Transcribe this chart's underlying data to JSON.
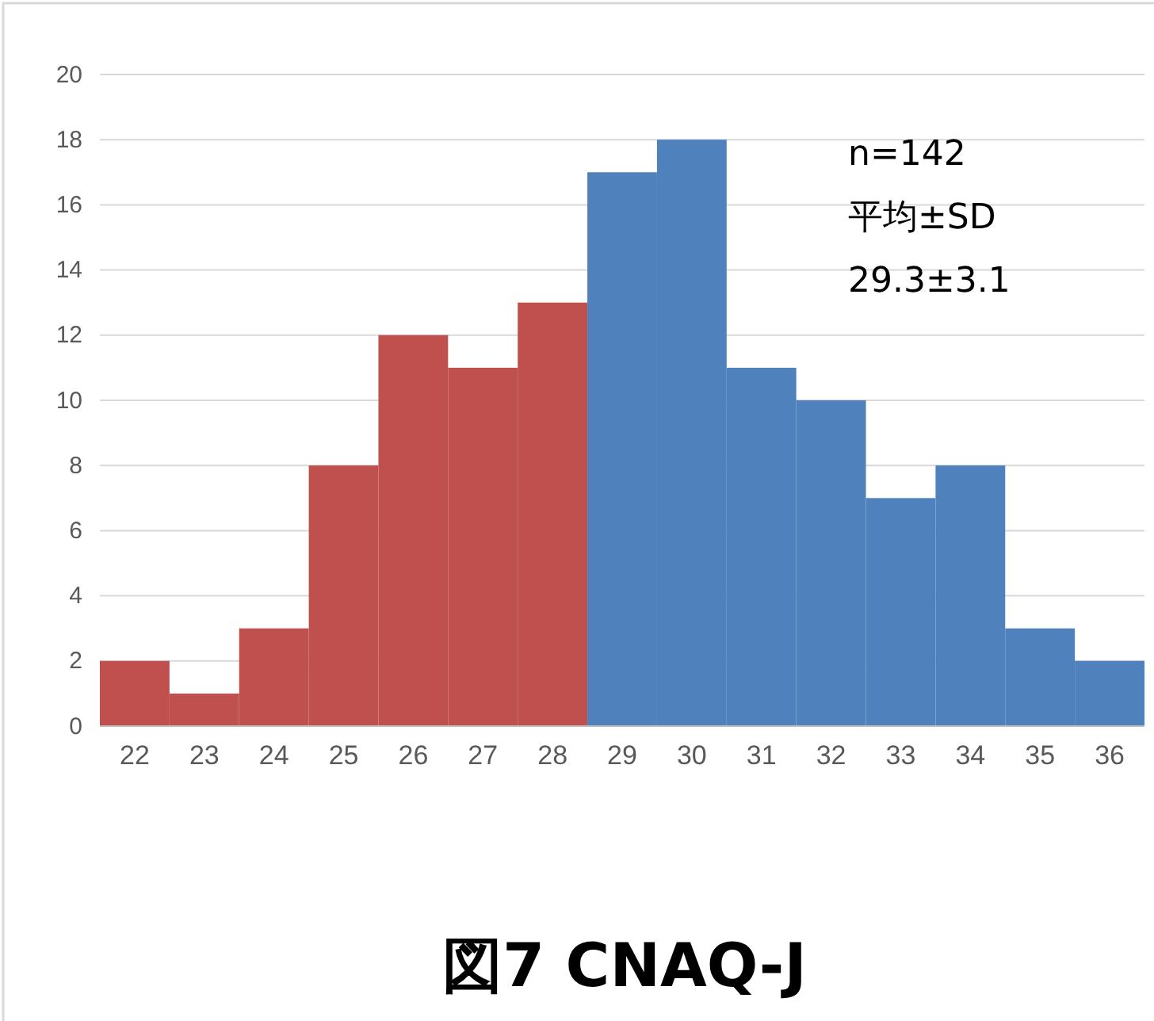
{
  "chart_data": {
    "type": "bar",
    "title": "図7  CNAQ-J",
    "categories": [
      "22",
      "23",
      "24",
      "25",
      "26",
      "27",
      "28",
      "29",
      "30",
      "31",
      "32",
      "33",
      "34",
      "35",
      "36"
    ],
    "values": [
      2,
      1,
      3,
      8,
      12,
      11,
      13,
      17,
      18,
      11,
      10,
      7,
      8,
      3,
      2
    ],
    "colors": [
      "#c0504d",
      "#c0504d",
      "#c0504d",
      "#c0504d",
      "#c0504d",
      "#c0504d",
      "#c0504d",
      "#4f81bd",
      "#4f81bd",
      "#4f81bd",
      "#4f81bd",
      "#4f81bd",
      "#4f81bd",
      "#4f81bd",
      "#4f81bd"
    ],
    "ylim": [
      0,
      20
    ],
    "yticks": [
      0,
      2,
      4,
      6,
      8,
      10,
      12,
      14,
      16,
      18,
      20
    ],
    "grid": "y",
    "annotations": [
      "n=142",
      "平均±SD",
      "29.3±3.1"
    ]
  }
}
